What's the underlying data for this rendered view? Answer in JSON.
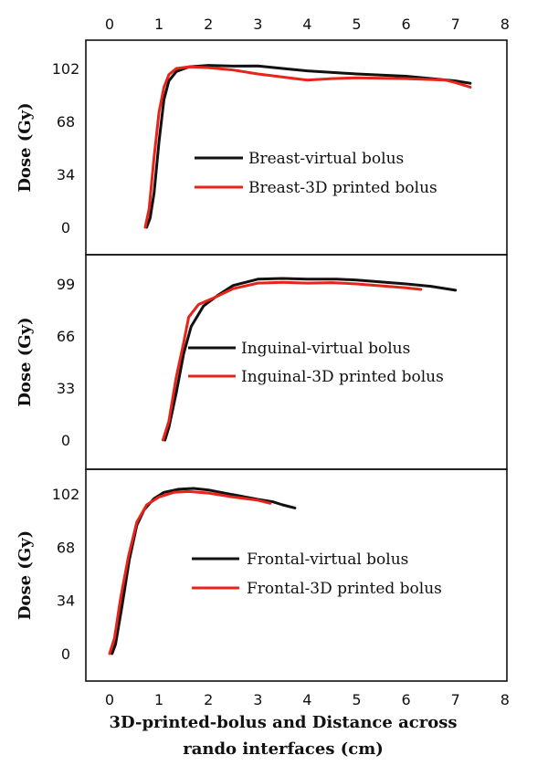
{
  "chart_data": {
    "type": "line",
    "xlim": [
      0,
      8
    ],
    "x_ticks": [
      "0",
      "1",
      "2",
      "3",
      "4",
      "5",
      "6",
      "7",
      "8"
    ],
    "xlabel_line1": "3D-printed-bolus and Distance across",
    "xlabel_line2": "rando interfaces (cm)",
    "colors": {
      "virtual": "#111111",
      "printed": "#e8231a"
    },
    "panels": [
      {
        "ylabel": "Dose (Gy)",
        "y_ticks": [
          0,
          34,
          68,
          102
        ],
        "y_ticks_labels": [
          "0",
          "34",
          "68",
          "102"
        ],
        "series": [
          {
            "name": "Breast-virtual bolus",
            "color": "#111111",
            "points": [
              [
                0.75,
                0
              ],
              [
                0.82,
                6
              ],
              [
                0.9,
                22
              ],
              [
                1.0,
                55
              ],
              [
                1.1,
                82
              ],
              [
                1.2,
                94
              ],
              [
                1.35,
                100
              ],
              [
                1.6,
                103
              ],
              [
                2.0,
                104
              ],
              [
                2.5,
                103.5
              ],
              [
                3.0,
                103.6
              ],
              [
                3.5,
                102
              ],
              [
                4.0,
                100.5
              ],
              [
                5.0,
                98.5
              ],
              [
                6.0,
                97
              ],
              [
                7.0,
                94
              ],
              [
                7.3,
                92.5
              ]
            ]
          },
          {
            "name": "Breast-3D printed bolus",
            "color": "#e8231a",
            "points": [
              [
                0.72,
                0
              ],
              [
                0.8,
                12
              ],
              [
                0.9,
                45
              ],
              [
                1.0,
                74
              ],
              [
                1.1,
                90
              ],
              [
                1.2,
                98
              ],
              [
                1.35,
                102
              ],
              [
                1.6,
                103
              ],
              [
                2.0,
                102.5
              ],
              [
                2.5,
                101
              ],
              [
                3.0,
                98.5
              ],
              [
                3.5,
                96.5
              ],
              [
                4.0,
                94.5
              ],
              [
                4.5,
                95.5
              ],
              [
                5.0,
                96
              ],
              [
                6.0,
                95.5
              ],
              [
                6.8,
                94.5
              ],
              [
                7.0,
                93
              ],
              [
                7.3,
                90
              ]
            ]
          }
        ]
      },
      {
        "ylabel": "Dose (Gy)",
        "y_ticks": [
          0,
          33,
          66,
          99
        ],
        "y_ticks_labels": [
          "0",
          "33",
          "66",
          "99"
        ],
        "series": [
          {
            "name": "Inguinal-virtual bolus",
            "color": "#111111",
            "points": [
              [
                1.12,
                0
              ],
              [
                1.2,
                8
              ],
              [
                1.35,
                30
              ],
              [
                1.5,
                55
              ],
              [
                1.65,
                72
              ],
              [
                1.9,
                85
              ],
              [
                2.2,
                92
              ],
              [
                2.5,
                98
              ],
              [
                3.0,
                102
              ],
              [
                3.5,
                102.5
              ],
              [
                4.0,
                102
              ],
              [
                4.6,
                102
              ],
              [
                5.0,
                101.5
              ],
              [
                6.0,
                99
              ],
              [
                6.5,
                97.5
              ],
              [
                7.0,
                95
              ]
            ]
          },
          {
            "name": "Inguinal-3D printed bolus",
            "color": "#e8231a",
            "points": [
              [
                1.08,
                0
              ],
              [
                1.2,
                12
              ],
              [
                1.35,
                40
              ],
              [
                1.5,
                62
              ],
              [
                1.6,
                78
              ],
              [
                1.8,
                86
              ],
              [
                2.1,
                90
              ],
              [
                2.5,
                96
              ],
              [
                3.0,
                99.5
              ],
              [
                3.5,
                100
              ],
              [
                4.0,
                99.5
              ],
              [
                4.5,
                99.8
              ],
              [
                5.0,
                99
              ],
              [
                6.0,
                96.5
              ],
              [
                6.3,
                95.5
              ]
            ]
          }
        ]
      },
      {
        "ylabel": "Dose (Gy)",
        "y_ticks": [
          0,
          34,
          68,
          102
        ],
        "y_ticks_labels": [
          "0",
          "34",
          "68",
          "102"
        ],
        "series": [
          {
            "name": "Frontal-virtual bolus",
            "color": "#111111",
            "points": [
              [
                0.05,
                0
              ],
              [
                0.12,
                6
              ],
              [
                0.25,
                30
              ],
              [
                0.4,
                60
              ],
              [
                0.55,
                82
              ],
              [
                0.7,
                92
              ],
              [
                0.9,
                99
              ],
              [
                1.1,
                103
              ],
              [
                1.4,
                105
              ],
              [
                1.7,
                105.5
              ],
              [
                2.0,
                104.5
              ],
              [
                2.5,
                101.5
              ],
              [
                3.0,
                98.5
              ],
              [
                3.3,
                97
              ],
              [
                3.5,
                95
              ],
              [
                3.75,
                93
              ]
            ]
          },
          {
            "name": "Frontal-3D printed bolus",
            "color": "#e8231a",
            "points": [
              [
                0.0,
                0
              ],
              [
                0.1,
                10
              ],
              [
                0.22,
                35
              ],
              [
                0.38,
                62
              ],
              [
                0.55,
                84
              ],
              [
                0.75,
                95
              ],
              [
                1.0,
                100
              ],
              [
                1.3,
                103
              ],
              [
                1.6,
                103.5
              ],
              [
                2.0,
                102.5
              ],
              [
                2.5,
                100
              ],
              [
                3.0,
                98
              ],
              [
                3.25,
                96
              ]
            ]
          }
        ]
      }
    ]
  }
}
